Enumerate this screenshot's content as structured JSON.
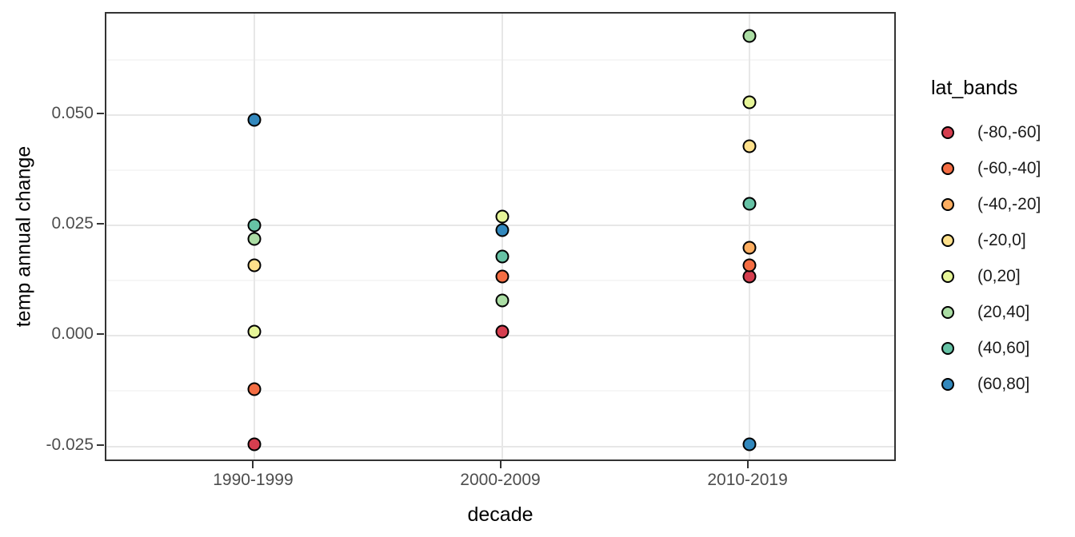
{
  "figure": {
    "x_axis_title": "decade",
    "y_axis_title": "temp annual change"
  },
  "legend": {
    "title": "lat_bands",
    "entries": [
      {
        "label": "(-80,-60]",
        "color": "#D53E4F"
      },
      {
        "label": "(-60,-40]",
        "color": "#F46D43"
      },
      {
        "label": "(-40,-20]",
        "color": "#FDAE61"
      },
      {
        "label": "(-20,0]",
        "color": "#FEE08B"
      },
      {
        "label": "(0,20]",
        "color": "#E6F598"
      },
      {
        "label": "(20,40]",
        "color": "#ABDDA4"
      },
      {
        "label": "(40,60]",
        "color": "#66C2A5"
      },
      {
        "label": "(60,80]",
        "color": "#3288BD"
      }
    ]
  },
  "chart_data": {
    "type": "scatter",
    "title": "",
    "xlabel": "decade",
    "ylabel": "temp annual change",
    "x_categories": [
      "1990-1999",
      "2000-2009",
      "2010-2019"
    ],
    "y_axis": {
      "tick_values": [
        -0.025,
        0.0,
        0.025,
        0.05
      ],
      "tick_labels": [
        "-0.025",
        "0.000",
        "0.025",
        "0.050"
      ],
      "minor_tick_values": [
        -0.0125,
        0.0125,
        0.0375,
        0.0625
      ],
      "ylim": [
        -0.0287,
        0.073
      ]
    },
    "grid": true,
    "legend_position": "right",
    "legend_title": "lat_bands",
    "series": [
      {
        "name": "(-80,-60]",
        "color": "#D53E4F",
        "values": [
          -0.0245,
          0.001,
          0.0135
        ]
      },
      {
        "name": "(-60,-40]",
        "color": "#F46D43",
        "values": [
          -0.012,
          0.0135,
          0.016
        ]
      },
      {
        "name": "(-40,-20]",
        "color": "#FDAE61",
        "values": [
          null,
          null,
          0.02
        ]
      },
      {
        "name": "(-20,0]",
        "color": "#FEE08B",
        "values": [
          0.016,
          null,
          0.043
        ]
      },
      {
        "name": "(0,20]",
        "color": "#E6F598",
        "values": [
          0.001,
          0.027,
          0.053
        ]
      },
      {
        "name": "(20,40]",
        "color": "#ABDDA4",
        "values": [
          0.022,
          0.008,
          0.068
        ]
      },
      {
        "name": "(40,60]",
        "color": "#66C2A5",
        "values": [
          0.025,
          0.018,
          0.03
        ]
      },
      {
        "name": "(60,80]",
        "color": "#3288BD",
        "values": [
          0.049,
          0.024,
          -0.0245
        ]
      }
    ]
  },
  "colors": {
    "panel_border": "#333333",
    "grid_major": "#E7E7E7",
    "grid_minor": "#EDEDED",
    "axis_text": "#4D4D4D",
    "point_stroke": "#000000",
    "background": "#FFFFFF"
  }
}
